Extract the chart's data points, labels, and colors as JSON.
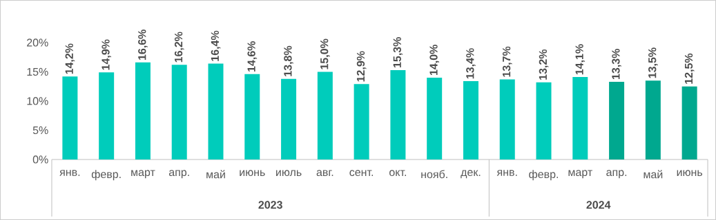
{
  "chart_data": {
    "type": "bar",
    "categories": [
      "янв.",
      "февр.",
      "март",
      "апр.",
      "май",
      "июнь",
      "июль",
      "авг.",
      "сент.",
      "окт.",
      "нояб.",
      "дек.",
      "янв.",
      "февр.",
      "март",
      "апр.",
      "май",
      "июнь"
    ],
    "values": [
      14.2,
      14.9,
      16.6,
      16.2,
      16.4,
      14.6,
      13.8,
      15.0,
      12.9,
      15.3,
      14.0,
      13.4,
      13.7,
      13.2,
      14.1,
      13.3,
      13.5,
      12.5
    ],
    "colors": [
      "#00ccbb",
      "#00ccbb",
      "#00ccbb",
      "#00ccbb",
      "#00ccbb",
      "#00ccbb",
      "#00ccbb",
      "#00ccbb",
      "#00ccbb",
      "#00ccbb",
      "#00ccbb",
      "#00ccbb",
      "#00ccbb",
      "#00ccbb",
      "#00ccbb",
      "#00a88f",
      "#00a88f",
      "#00a88f"
    ],
    "value_labels": [
      "14,2%",
      "14,9%",
      "16,6%",
      "16,2%",
      "16,4%",
      "14,6%",
      "13,8%",
      "15,0%",
      "12,9%",
      "15,3%",
      "14,0%",
      "13,4%",
      "13,7%",
      "13,2%",
      "14,1%",
      "13,3%",
      "13,5%",
      "12,5%"
    ],
    "annotations": [
      "2023",
      "2024"
    ],
    "ylim": [
      0,
      20
    ],
    "yticks": [
      {
        "value": 0,
        "label": "0%"
      },
      {
        "value": 5,
        "label": "5%"
      },
      {
        "value": 10,
        "label": "10%"
      },
      {
        "value": 15,
        "label": "15%"
      },
      {
        "value": 20,
        "label": "20%"
      }
    ],
    "grid": false
  }
}
